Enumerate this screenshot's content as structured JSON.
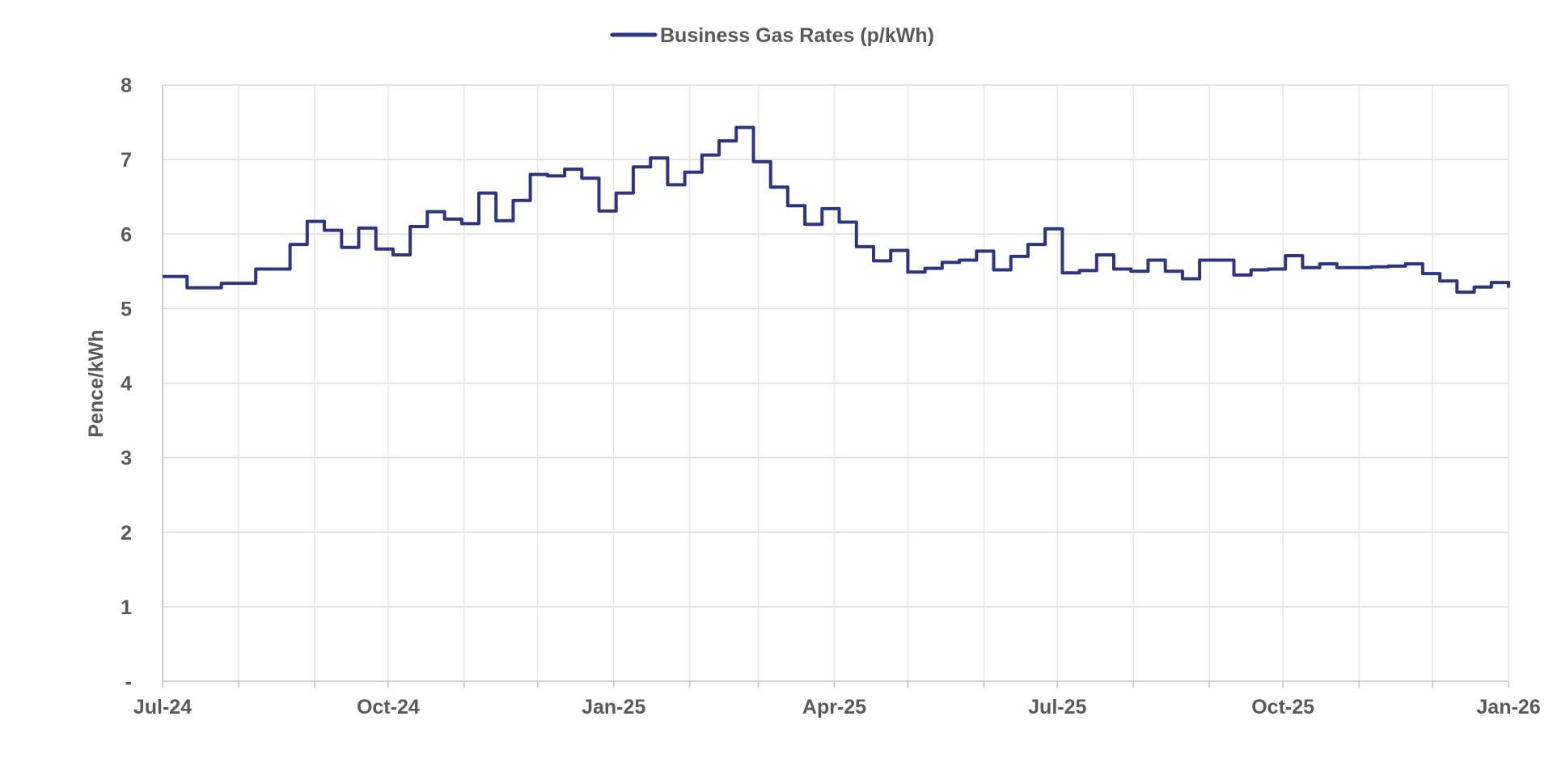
{
  "chart_data": {
    "type": "line",
    "title": "",
    "xlabel": "",
    "ylabel": "Pence/kWh",
    "legend": {
      "position": "top-center",
      "entries": [
        "Business Gas Rates (p/kWh)"
      ]
    },
    "grid": {
      "horizontal": true,
      "vertical": true,
      "vertical_interval": "monthly"
    },
    "x_axis": {
      "type": "date",
      "range": [
        "2024-07-01",
        "2026-01-01"
      ],
      "tick_labels": [
        "Jul-24",
        "Oct-24",
        "Jan-25",
        "Apr-25",
        "Jul-25",
        "Oct-25",
        "Jan-26"
      ],
      "tick_dates": [
        "2024-07-01",
        "2024-10-01",
        "2025-01-01",
        "2025-04-01",
        "2025-07-01",
        "2025-10-01",
        "2026-01-01"
      ]
    },
    "y_axis": {
      "ylim": [
        0,
        8
      ],
      "ticks": [
        0,
        1,
        2,
        3,
        4,
        5,
        6,
        7,
        8
      ],
      "tick_labels": [
        "-",
        "1",
        "2",
        "3",
        "4",
        "5",
        "6",
        "7",
        "8"
      ]
    },
    "series": [
      {
        "name": "Business Gas Rates (p/kWh)",
        "color": "#2b3580",
        "step": true,
        "x": [
          "2024-07-01",
          "2024-07-11",
          "2024-07-25",
          "2024-08-08",
          "2024-08-22",
          "2024-08-29",
          "2024-09-05",
          "2024-09-12",
          "2024-09-19",
          "2024-09-26",
          "2024-10-03",
          "2024-10-10",
          "2024-10-17",
          "2024-10-24",
          "2024-10-31",
          "2024-11-07",
          "2024-11-14",
          "2024-11-21",
          "2024-11-28",
          "2024-12-05",
          "2024-12-12",
          "2024-12-19",
          "2024-12-26",
          "2025-01-02",
          "2025-01-09",
          "2025-01-16",
          "2025-01-23",
          "2025-01-30",
          "2025-02-06",
          "2025-02-13",
          "2025-02-20",
          "2025-02-27",
          "2025-03-06",
          "2025-03-13",
          "2025-03-20",
          "2025-03-27",
          "2025-04-03",
          "2025-04-10",
          "2025-04-17",
          "2025-04-24",
          "2025-05-01",
          "2025-05-08",
          "2025-05-15",
          "2025-05-22",
          "2025-05-29",
          "2025-06-05",
          "2025-06-12",
          "2025-06-19",
          "2025-06-26",
          "2025-07-03",
          "2025-07-10",
          "2025-07-17",
          "2025-07-24",
          "2025-07-31",
          "2025-08-07",
          "2025-08-14",
          "2025-08-21",
          "2025-08-28",
          "2025-09-11",
          "2025-09-18",
          "2025-09-25",
          "2025-10-02",
          "2025-10-09",
          "2025-10-16",
          "2025-10-23",
          "2025-10-30",
          "2025-11-06",
          "2025-11-13",
          "2025-11-20",
          "2025-11-27",
          "2025-12-04",
          "2025-12-11",
          "2025-12-18",
          "2025-12-25",
          "2026-01-01"
        ],
        "values": [
          5.43,
          5.28,
          5.34,
          5.53,
          5.86,
          6.17,
          6.05,
          5.82,
          6.08,
          5.8,
          5.72,
          6.1,
          6.3,
          6.2,
          6.14,
          6.55,
          6.18,
          6.45,
          6.8,
          6.78,
          6.87,
          6.75,
          6.31,
          6.55,
          6.9,
          7.02,
          6.66,
          6.83,
          7.06,
          7.25,
          7.43,
          6.97,
          6.63,
          6.38,
          6.13,
          6.34,
          6.16,
          5.83,
          5.64,
          5.78,
          5.49,
          5.54,
          5.62,
          5.65,
          5.77,
          5.52,
          5.7,
          5.86,
          6.07,
          5.48,
          5.51,
          5.72,
          5.53,
          5.5,
          5.65,
          5.5,
          5.4,
          5.65,
          5.45,
          5.52,
          5.53,
          5.71,
          5.55,
          5.6,
          5.55,
          5.55,
          5.56,
          5.57,
          5.6,
          5.47,
          5.37,
          5.22,
          5.29,
          5.35,
          5.28
        ]
      }
    ]
  }
}
